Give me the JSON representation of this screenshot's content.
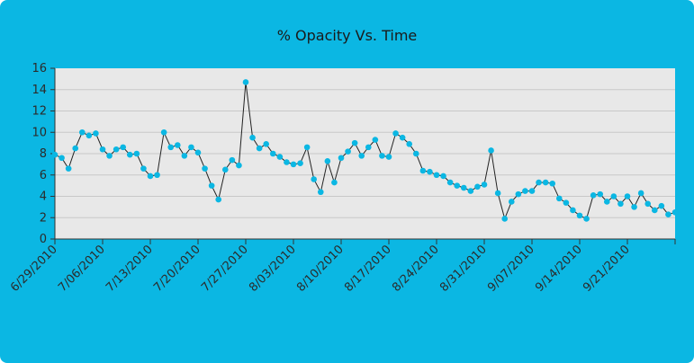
{
  "chart_data": {
    "type": "line",
    "title": "% Opacity Vs. Time",
    "xlabel": "",
    "ylabel": "",
    "ylim": [
      0,
      16
    ],
    "y_ticks": [
      0,
      2,
      4,
      6,
      8,
      10,
      12,
      14,
      16
    ],
    "x_tick_labels": [
      "6/29/2010",
      "7/06/2010",
      "7/13/2010",
      "7/20/2010",
      "7/27/2010",
      "8/03/2010",
      "8/10/2010",
      "8/17/2010",
      "8/24/2010",
      "8/31/2010",
      "9/07/2010",
      "9/14/2010",
      "9/21/2010"
    ],
    "x_tick_days": [
      0,
      7,
      14,
      21,
      28,
      35,
      42,
      49,
      56,
      63,
      70,
      77,
      84
    ],
    "xlim_days": [
      0,
      91
    ],
    "grid": true,
    "legend": "none",
    "colors": {
      "background": "#0bb7e3",
      "plot_area": "#e8e8e8",
      "marker": "#0bb7e3",
      "line": "#222222",
      "grid": "#c8c8c8"
    },
    "series": [
      {
        "x_days": [
          0,
          1,
          2,
          3,
          4,
          5,
          6,
          7,
          8,
          9,
          10,
          11,
          12,
          13,
          14,
          15,
          16,
          17,
          18,
          19,
          20,
          21,
          22,
          23,
          24,
          25,
          26,
          27,
          28,
          29,
          30,
          31,
          32,
          33,
          34,
          35,
          36,
          37,
          38,
          39,
          40,
          41,
          42,
          43,
          44,
          45,
          46,
          47,
          48,
          49,
          50,
          51,
          52,
          53,
          54,
          55,
          56,
          57,
          58,
          59,
          60,
          61,
          62,
          63,
          64,
          65,
          66,
          67,
          68,
          69,
          70,
          71,
          72,
          73,
          74,
          75,
          76,
          77,
          78,
          79,
          80,
          81,
          82,
          83,
          84,
          85,
          86,
          87,
          88,
          89,
          90,
          91
        ],
        "values": [
          7.9,
          7.6,
          6.6,
          8.5,
          10.0,
          9.7,
          9.9,
          8.4,
          7.8,
          8.4,
          8.6,
          7.9,
          8.0,
          6.6,
          5.9,
          6.0,
          10.0,
          8.6,
          8.8,
          7.8,
          8.6,
          8.1,
          6.6,
          5.0,
          3.7,
          6.5,
          7.4,
          6.9,
          14.7,
          9.5,
          8.5,
          8.9,
          8.0,
          7.7,
          7.2,
          7.0,
          7.1,
          8.6,
          5.6,
          4.4,
          7.3,
          5.3,
          7.6,
          8.2,
          9.0,
          7.8,
          8.6,
          9.3,
          7.8,
          7.7,
          9.9,
          9.5,
          8.9,
          8.0,
          6.4,
          6.3,
          6.0,
          5.9,
          5.3,
          5.0,
          4.8,
          4.5,
          4.9,
          5.1,
          8.3,
          4.3,
          1.9,
          3.5,
          4.2,
          4.5,
          4.5,
          5.3,
          5.3,
          5.2,
          3.8,
          3.4,
          2.7,
          2.2,
          1.9,
          4.1,
          4.2,
          3.5,
          4.0,
          3.3,
          4.0,
          3.0,
          4.3,
          3.3,
          2.7,
          3.1,
          2.3,
          2.5
        ]
      }
    ]
  }
}
